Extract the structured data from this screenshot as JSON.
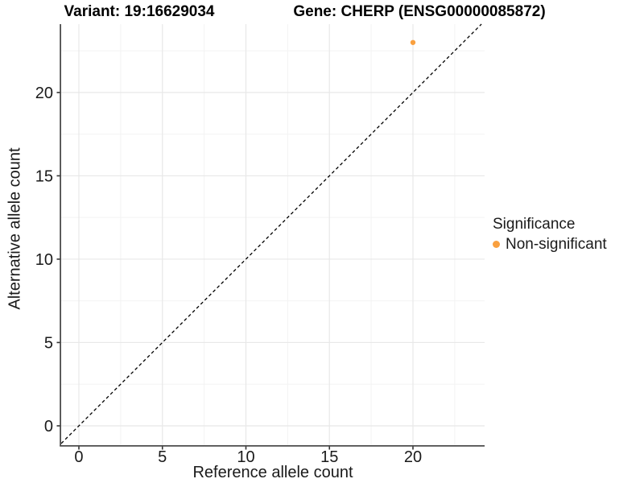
{
  "chart_data": {
    "type": "scatter",
    "title_left": "Variant: 19:16629034",
    "title_right": "Gene: CHERP (ENSG00000085872)",
    "xlabel": "Reference allele count",
    "ylabel": "Alternative allele count",
    "xlim": [
      -1.06,
      24.29
    ],
    "ylim": [
      -1.16,
      24.1
    ],
    "xticks": [
      0,
      5,
      10,
      15,
      20
    ],
    "yticks": [
      0,
      5,
      10,
      15,
      20
    ],
    "minor_grid_step": 2.5,
    "grid": "major+minor",
    "points": [
      {
        "x": 20,
        "y": 23,
        "group": "Non-significant"
      }
    ],
    "identity_line": {
      "slope": 1,
      "intercept": 0,
      "style": "dashed",
      "color": "#000000"
    },
    "legend": {
      "title": "Significance",
      "position": "right",
      "items": [
        {
          "label": "Non-significant",
          "color": "#F9A03F"
        }
      ]
    },
    "colors": {
      "point": "#F9A03F",
      "grid_major": "#E8E8E8",
      "grid_minor": "#F3F3F3",
      "axis_line": "#4D4D4D",
      "tick_mark": "#333333",
      "text": "#1A1A1A"
    }
  }
}
